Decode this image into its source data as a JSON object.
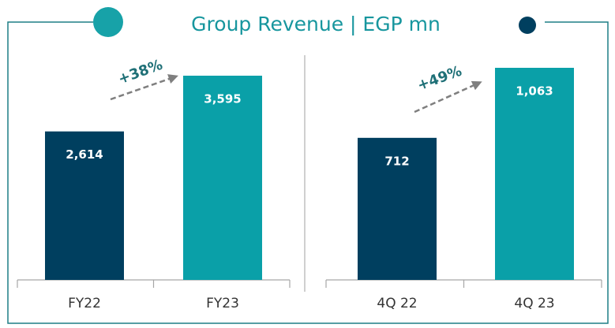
{
  "title": "Group Revenue | EGP mn",
  "chart_data": [
    {
      "type": "bar",
      "categories": [
        "FY22",
        "FY23"
      ],
      "values": [
        2614,
        3595
      ],
      "value_labels": [
        "2,614",
        "3,595"
      ],
      "colors": [
        "#003f5f",
        "#0aa0a8"
      ],
      "annotation": "+38%"
    },
    {
      "type": "bar",
      "categories": [
        "4Q 22",
        "4Q 23"
      ],
      "values": [
        712,
        1063
      ],
      "value_labels": [
        "712",
        "1,063"
      ],
      "colors": [
        "#003f5f",
        "#0aa0a8"
      ],
      "annotation": "+49%"
    }
  ]
}
